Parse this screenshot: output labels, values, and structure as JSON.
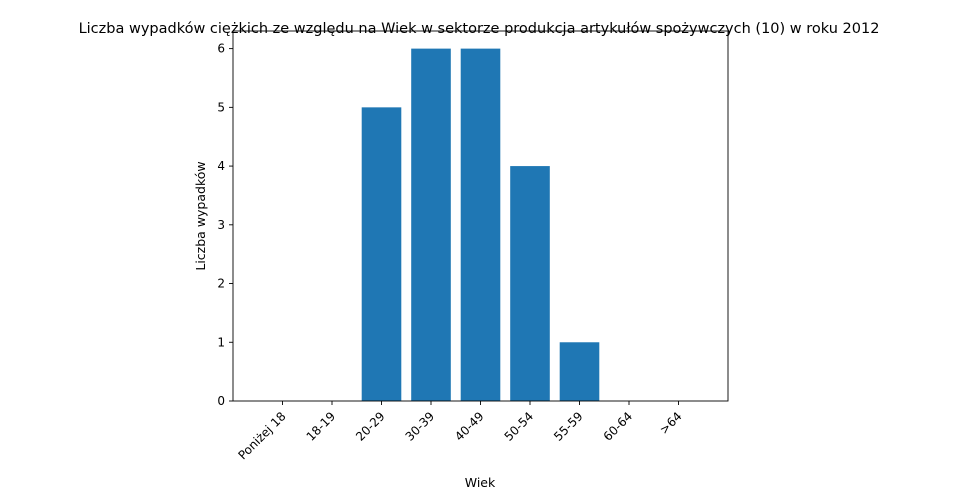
{
  "chart_data": {
    "type": "bar",
    "title": "Liczba wypadków ciężkich ze względu na Wiek w sektorze produkcja artykułów spożywczych  (10)   w roku 2012",
    "xlabel": "Wiek",
    "ylabel": "Liczba wypadków",
    "categories": [
      "Poniżej 18",
      "18-19",
      "20-29",
      "30-39",
      "40-49",
      "50-54",
      "55-59",
      "60-64",
      ">64"
    ],
    "values": [
      0,
      0,
      5,
      6,
      6,
      4,
      1,
      0,
      0
    ],
    "ylim": [
      0,
      6.3
    ],
    "yticks": [
      0,
      1,
      2,
      3,
      4,
      5,
      6
    ],
    "bar_color": "#1f77b4",
    "grid": false,
    "legend": "none"
  }
}
